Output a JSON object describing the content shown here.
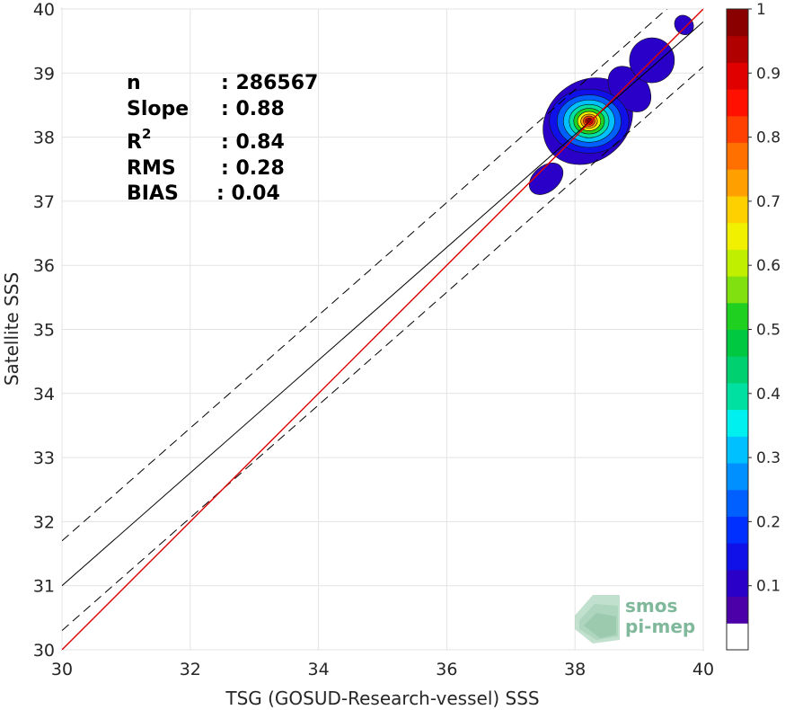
{
  "chart_data": {
    "type": "scatter",
    "subtype": "density-contour",
    "xlabel": "TSG (GOSUD-Research-vessel) SSS",
    "ylabel": "Satellite SSS",
    "xlim": [
      30,
      40
    ],
    "ylim": [
      30,
      40
    ],
    "xticks": [
      "30",
      "32",
      "34",
      "36",
      "38",
      "40"
    ],
    "yticks": [
      "30",
      "31",
      "32",
      "33",
      "34",
      "35",
      "36",
      "37",
      "38",
      "39",
      "40"
    ],
    "grid": true,
    "stats": [
      {
        "label": "n",
        "sep": ": ",
        "value": "286567"
      },
      {
        "label": "Slope",
        "sep": ": ",
        "value": "0.88"
      },
      {
        "label": "R",
        "sup": "2",
        "sep": ": ",
        "value": "0.84"
      },
      {
        "label": "RMS",
        "sep": ": ",
        "value": "0.28"
      },
      {
        "label": "BIAS",
        "sep": ": ",
        "value": "0.04"
      }
    ],
    "identity_line": {
      "slope": 1,
      "intercept": 0,
      "color": "#e00000"
    },
    "fit_line": {
      "slope": 0.88,
      "intercept": 4.6,
      "color": "#000000"
    },
    "dashed_lines": [
      {
        "slope": 0.88,
        "intercept": 5.3
      },
      {
        "slope": 0.88,
        "intercept": 3.9
      }
    ],
    "density_blobs": [
      {
        "x": 37.55,
        "y": 37.35,
        "rx": 0.3,
        "ry": 0.2
      },
      {
        "x": 38.2,
        "y": 38.25,
        "rx": 0.75,
        "ry": 0.62
      },
      {
        "x": 38.85,
        "y": 38.75,
        "rx": 0.28,
        "ry": 0.4
      },
      {
        "x": 39.2,
        "y": 39.2,
        "rx": 0.35,
        "ry": 0.35
      },
      {
        "x": 39.7,
        "y": 39.75,
        "rx": 0.14,
        "ry": 0.16
      }
    ],
    "peak": {
      "x": 38.22,
      "y": 38.25
    },
    "colorbar": {
      "min": 0,
      "max": 1,
      "ticks": [
        "0.1",
        "0.2",
        "0.3",
        "0.4",
        "0.5",
        "0.6",
        "0.7",
        "0.8",
        "0.9",
        "1"
      ],
      "tick_values": [
        0.1,
        0.2,
        0.3,
        0.4,
        0.5,
        0.6,
        0.7,
        0.8,
        0.9,
        1.0
      ],
      "colors": [
        "#ffffff",
        "#4b00a8",
        "#2a00c8",
        "#1010e8",
        "#0030ff",
        "#0060ff",
        "#0090ff",
        "#00c0ff",
        "#00f0f0",
        "#00e0a0",
        "#00d070",
        "#00c840",
        "#20d020",
        "#80e010",
        "#c0f000",
        "#f0f000",
        "#ffd000",
        "#ffa000",
        "#ff7000",
        "#ff4000",
        "#ff1000",
        "#e00000",
        "#b00000",
        "#8a0000"
      ]
    }
  },
  "watermark": {
    "line1": "smos",
    "line2": "pi-mep",
    "icon": "smos-pimep-logo-icon"
  }
}
